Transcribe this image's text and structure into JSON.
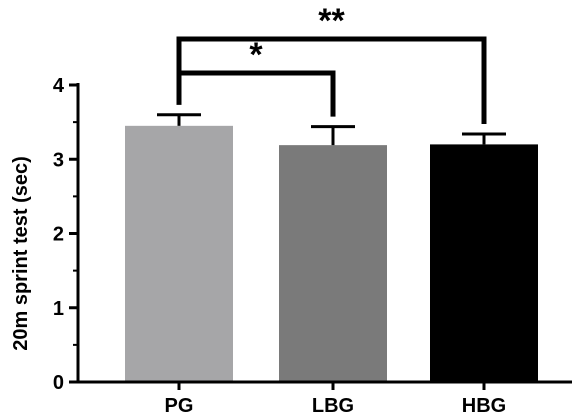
{
  "chart_data": {
    "type": "bar",
    "categories": [
      "PG",
      "LBG",
      "HBG"
    ],
    "values": [
      3.45,
      3.19,
      3.2
    ],
    "errors": [
      0.15,
      0.25,
      0.14
    ],
    "colors": [
      "#a6a6a8",
      "#7a7a7a",
      "#000000"
    ],
    "xlabel": "",
    "ylabel": "20m sprint test (sec)",
    "ylim": [
      0,
      4
    ],
    "yticks": [
      0,
      1,
      2,
      3,
      4
    ],
    "grid": false,
    "significance": [
      {
        "from": 0,
        "to": 1,
        "label": "*"
      },
      {
        "from": 0,
        "to": 2,
        "label": "**"
      }
    ]
  }
}
